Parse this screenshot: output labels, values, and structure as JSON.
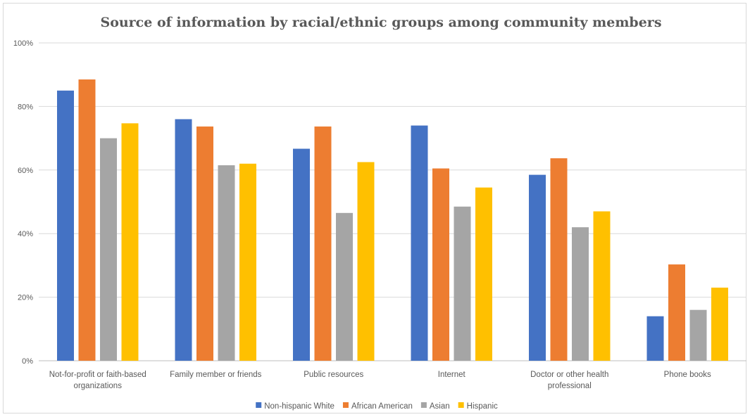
{
  "chart_data": {
    "type": "bar",
    "title": "Source of information by racial/ethnic groups among community members",
    "xlabel": "",
    "ylabel": "",
    "ylim": [
      0,
      100
    ],
    "yticks": [
      "0%",
      "20%",
      "40%",
      "60%",
      "80%",
      "100%"
    ],
    "categories": [
      [
        "Not-for-profit or faith-based",
        "organizations"
      ],
      [
        "Family member or friends"
      ],
      [
        "Public resources"
      ],
      [
        "Internet"
      ],
      [
        "Doctor or other health",
        "professional"
      ],
      [
        "Phone books"
      ]
    ],
    "series": [
      {
        "name": "Non-hispanic White",
        "color": "#4472c4",
        "values": [
          85,
          76,
          66.7,
          74,
          58.5,
          14
        ]
      },
      {
        "name": "African American",
        "color": "#ed7d31",
        "values": [
          88.5,
          73.7,
          73.7,
          60.5,
          63.7,
          30.3
        ]
      },
      {
        "name": "Asian",
        "color": "#a5a5a5",
        "values": [
          70,
          61.5,
          46.5,
          48.5,
          42,
          16
        ]
      },
      {
        "name": "Hispanic",
        "color": "#ffc000",
        "values": [
          74.7,
          62,
          62.5,
          54.5,
          47,
          23
        ]
      }
    ],
    "grid": true,
    "legend_position": "bottom"
  }
}
